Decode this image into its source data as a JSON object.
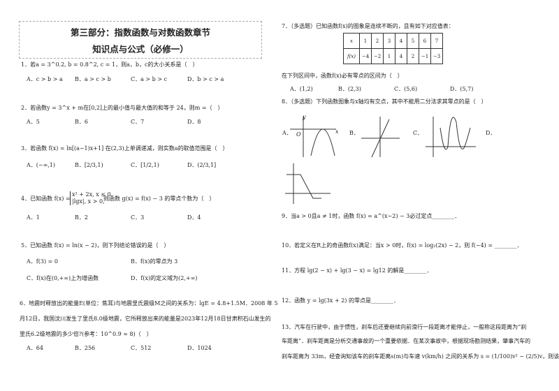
{
  "header": {
    "line1": "第三部分：指数函数与对数函数章节",
    "line2": "知识点与公式（必修一）"
  },
  "left": {
    "q1": {
      "stem": "1．若a = 3^0.2, b = 0.8^2, c = 1，则a，b，c的大小关系是（　）",
      "options": [
        "A．c > b > a",
        "B．a > c > b",
        "C．a > b > c",
        "D．b > c > a"
      ]
    },
    "q2": {
      "stem": "2．若函数y = 3^x + m在[0,2]上的最小值与最大值的和等于 24，则m =（　）",
      "options": [
        "A．5",
        "B．6",
        "C．7",
        "D．8"
      ]
    },
    "q3": {
      "stem": "3．若函数 f(x) = ln[(a−1)x+1] 在(2,3)上单调递减，则实数a的取值范围是（　）",
      "options": [
        "A．(−∞,1)",
        "B．[2/3,1)",
        "C．[1/2,1)",
        "D．(2/3,1]"
      ]
    },
    "q4": {
      "stem_a": "4．已知函数 f(x) =",
      "case1": "x² + 2x, x ≤ 0,",
      "case2": "|lgx|, x > 0,",
      "stem_b": "则函数 g(x) = f(x) − 3 的零点个数为（　）",
      "options": [
        "A．1",
        "B．2",
        "C．3",
        "D．4"
      ]
    },
    "q5": {
      "stem": "5．已知函数 f(x) = ln(x − 2)，则下列结论错误的是（　）",
      "options": [
        "A．f(3) = 0",
        "B．f(x)的零点为 3",
        "C．f(x)在(0,+∞)上为增函数",
        "D．f(x)的定义域为(2,+∞)"
      ]
    },
    "q6": {
      "lines": [
        "6．地震时释放出的能量E(单位：焦耳)与地震里氏震级M之间的关系为：lgE = 4.8+1.5M．2008 年 5",
        "月12日，我国汶川发生了里氏8.0级地震，它所释放出来的能量是2023年12月18日甘肃积石山发生的",
        "里氏6.2级地震的多少倍?(参考：10^0.9 ≈ 8)（　）"
      ],
      "options": [
        "A．64",
        "B．256",
        "C．512",
        "D．1024"
      ]
    }
  },
  "right": {
    "q7": {
      "stem": "7．（多选题）已知函数f(x)的图象是连续不断的，且有如下对应值表：",
      "table": {
        "row1": [
          "x",
          "1",
          "2",
          "3",
          "4",
          "5",
          "6",
          "7"
        ],
        "row2": [
          "f(x)",
          "−4",
          "−2",
          "1",
          "4",
          "2",
          "−1",
          "−3"
        ]
      },
      "follow": "在下列区间中，函数f(x)必有零点的区间为（　）",
      "options": [
        "A．(1,2)",
        "B．(2,3)",
        "C．(5,6)",
        "D．(5,7)"
      ]
    },
    "q8": {
      "stem": "8．（多选题）下列函数图象与x轴均有交点，其中不能用二分法求其零点的是（　）",
      "labels": [
        "A．",
        "B．",
        "C．",
        "D．"
      ],
      "axis_x": "x",
      "axis_y": "y",
      "origin": "O"
    },
    "q9": "9．当a > 0且a ≠ 1时，函数 f(x) = a^(x−2) − 3必过定点________．",
    "q10": "10．若定义在R上的奇函数f(x)满足：当x > 0时，f(x) = log₂(2x) − 2，则 f(−4) = ________．",
    "q11": "11．方程 lg(2 − x) + lg(3 − x) = lg12 的解是________．",
    "q12": "12．函数 y = lg(3x + 2) 的零点是________．",
    "q13": {
      "lines": [
        "13．汽车在行驶中，由于惯性，刹车后还要继续向前滑行一段距离才能停止，一般称这段距离为“刹",
        "车距离”．刹车距离是分析交通事故的一个重要依据．在某次事故中，根据现场勘测结果，肇事汽车的",
        "刹车距离为 33m，经查询知该车的刹车距离s(m)与车速 v(km/h) 之间的关系为 s = (1/100)v² − (2/5)v，则该"
      ]
    }
  }
}
